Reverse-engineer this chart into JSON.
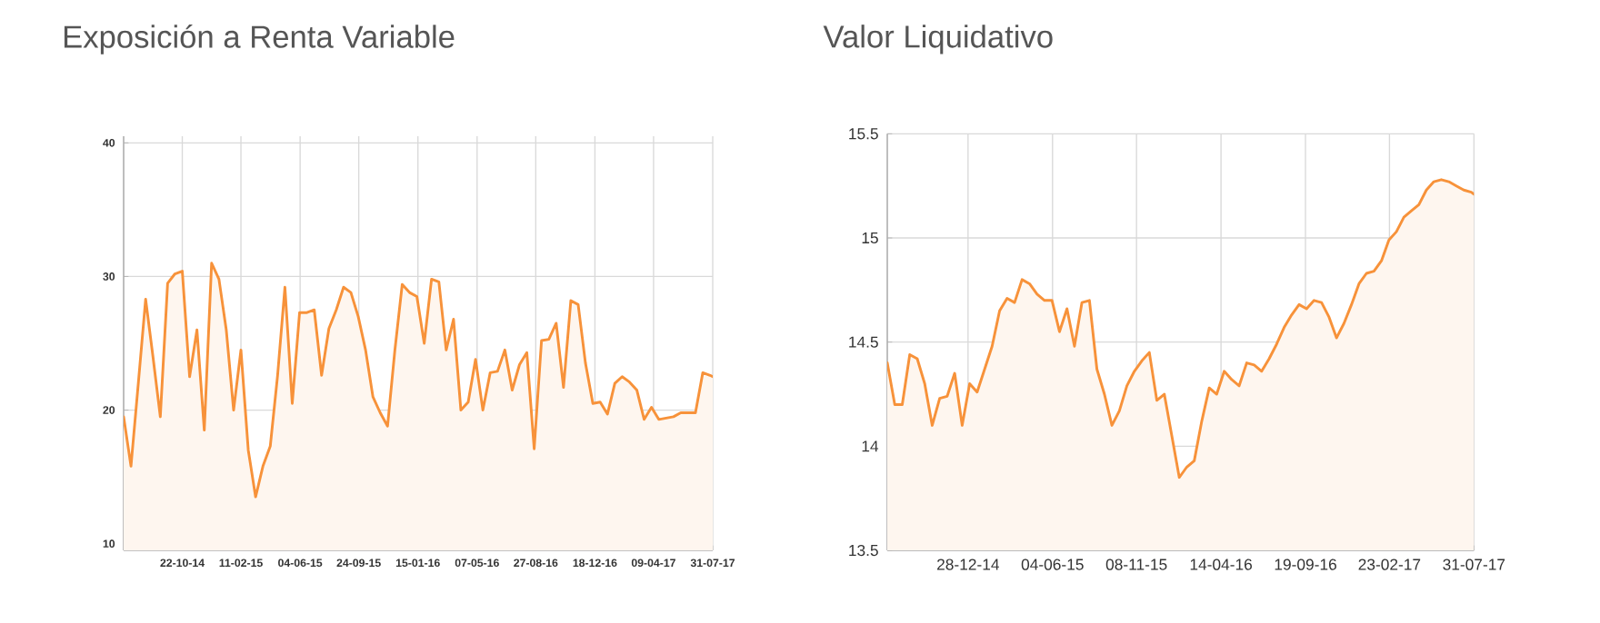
{
  "chart_data": [
    {
      "type": "area",
      "title": "Exposición a Renta Variable",
      "color": "#f7923a",
      "grid": true,
      "x": [
        "2014-07-02",
        "2014-07-16",
        "2014-07-30",
        "2014-08-13",
        "2014-08-27",
        "2014-09-10",
        "2014-09-24",
        "2014-10-08",
        "2014-10-22",
        "2014-11-05",
        "2014-11-19",
        "2014-12-03",
        "2014-12-17",
        "2014-12-31",
        "2015-01-14",
        "2015-01-28",
        "2015-02-11",
        "2015-02-25",
        "2015-03-11",
        "2015-03-25",
        "2015-04-08",
        "2015-04-22",
        "2015-05-06",
        "2015-05-20",
        "2015-06-03",
        "2015-06-17",
        "2015-07-01",
        "2015-07-15",
        "2015-07-29",
        "2015-08-12",
        "2015-08-26",
        "2015-09-09",
        "2015-09-23",
        "2015-10-07",
        "2015-10-21",
        "2015-11-04",
        "2015-11-18",
        "2015-12-02",
        "2015-12-16",
        "2015-12-30",
        "2016-01-13",
        "2016-01-27",
        "2016-02-10",
        "2016-02-24",
        "2016-03-09",
        "2016-03-23",
        "2016-04-06",
        "2016-04-20",
        "2016-05-04",
        "2016-05-18",
        "2016-06-01",
        "2016-06-15",
        "2016-06-29",
        "2016-07-13",
        "2016-07-27",
        "2016-08-10",
        "2016-08-24",
        "2016-09-07",
        "2016-09-21",
        "2016-10-05",
        "2016-10-19",
        "2016-11-02",
        "2016-11-16",
        "2016-11-30",
        "2016-12-14",
        "2016-12-28",
        "2017-01-11",
        "2017-01-25",
        "2017-02-08",
        "2017-02-22",
        "2017-03-08",
        "2017-03-22",
        "2017-04-05",
        "2017-04-19",
        "2017-05-03",
        "2017-05-17",
        "2017-05-31",
        "2017-06-14",
        "2017-06-28",
        "2017-07-12",
        "2017-07-26",
        "2017-07-31"
      ],
      "values": [
        19.5,
        15.8,
        22,
        28.3,
        24,
        19.5,
        29.5,
        30.2,
        30.4,
        22.5,
        26,
        18.5,
        31,
        29.8,
        26,
        20,
        24.5,
        17,
        13.5,
        15.8,
        17.3,
        22.6,
        29.2,
        20.5,
        27.3,
        27.3,
        27.5,
        22.6,
        26.1,
        27.5,
        29.2,
        28.8,
        27,
        24.5,
        21,
        19.8,
        18.8,
        24.5,
        29.4,
        28.8,
        28.5,
        25,
        29.8,
        29.6,
        24.5,
        26.8,
        20,
        20.6,
        23.8,
        20,
        22.8,
        22.9,
        24.5,
        21.5,
        23.4,
        24.3,
        17.1,
        25.2,
        25.3,
        26.5,
        21.7,
        28.2,
        27.9,
        23.5,
        20.5,
        20.6,
        19.7,
        22,
        22.5,
        22.1,
        21.5,
        19.3,
        20.2,
        19.3,
        19.4,
        19.5,
        19.8,
        19.8,
        19.8,
        22.8,
        22.6,
        22.5
      ],
      "xlim": [
        "2014-07-02",
        "2017-07-31"
      ],
      "ylim": [
        9.5,
        40.5
      ],
      "xticks": [
        {
          "value": "2014-10-22",
          "label": "22-10-14"
        },
        {
          "value": "2015-02-11",
          "label": "11-02-15"
        },
        {
          "value": "2015-06-04",
          "label": "04-06-15"
        },
        {
          "value": "2015-09-24",
          "label": "24-09-15"
        },
        {
          "value": "2016-01-15",
          "label": "15-01-16"
        },
        {
          "value": "2016-05-07",
          "label": "07-05-16"
        },
        {
          "value": "2016-08-27",
          "label": "27-08-16"
        },
        {
          "value": "2016-12-18",
          "label": "18-12-16"
        },
        {
          "value": "2017-04-09",
          "label": "09-04-17"
        },
        {
          "value": "2017-07-31",
          "label": "31-07-17"
        }
      ],
      "yticks": [
        10,
        20,
        30,
        40
      ]
    },
    {
      "type": "area",
      "title": "Valor Liquidativo",
      "color": "#f7923a",
      "grid": true,
      "x": [
        "2014-07-30",
        "2014-08-13",
        "2014-08-27",
        "2014-09-10",
        "2014-09-24",
        "2014-10-08",
        "2014-10-22",
        "2014-11-05",
        "2014-11-19",
        "2014-12-03",
        "2014-12-17",
        "2014-12-31",
        "2015-01-14",
        "2015-01-28",
        "2015-02-11",
        "2015-02-25",
        "2015-03-11",
        "2015-03-25",
        "2015-04-08",
        "2015-04-22",
        "2015-05-06",
        "2015-05-20",
        "2015-06-03",
        "2015-06-17",
        "2015-07-01",
        "2015-07-15",
        "2015-07-29",
        "2015-08-12",
        "2015-08-26",
        "2015-09-09",
        "2015-09-23",
        "2015-10-07",
        "2015-10-21",
        "2015-11-04",
        "2015-11-18",
        "2015-12-02",
        "2015-12-16",
        "2015-12-30",
        "2016-01-13",
        "2016-01-27",
        "2016-02-10",
        "2016-02-24",
        "2016-03-09",
        "2016-03-23",
        "2016-04-06",
        "2016-04-20",
        "2016-05-04",
        "2016-05-18",
        "2016-06-01",
        "2016-06-15",
        "2016-06-29",
        "2016-07-13",
        "2016-07-27",
        "2016-08-10",
        "2016-08-24",
        "2016-09-07",
        "2016-09-21",
        "2016-10-05",
        "2016-10-19",
        "2016-11-02",
        "2016-11-16",
        "2016-11-30",
        "2016-12-14",
        "2016-12-28",
        "2017-01-11",
        "2017-01-25",
        "2017-02-08",
        "2017-02-22",
        "2017-03-08",
        "2017-03-22",
        "2017-04-05",
        "2017-04-19",
        "2017-05-03",
        "2017-05-17",
        "2017-05-31",
        "2017-06-14",
        "2017-06-28",
        "2017-07-12",
        "2017-07-26",
        "2017-07-31"
      ],
      "values": [
        14.4,
        14.2,
        14.2,
        14.44,
        14.42,
        14.3,
        14.1,
        14.23,
        14.24,
        14.35,
        14.1,
        14.3,
        14.26,
        14.37,
        14.48,
        14.65,
        14.71,
        14.69,
        14.8,
        14.78,
        14.73,
        14.7,
        14.7,
        14.55,
        14.66,
        14.48,
        14.69,
        14.7,
        14.37,
        14.25,
        14.1,
        14.17,
        14.29,
        14.36,
        14.41,
        14.45,
        14.22,
        14.25,
        14.05,
        13.85,
        13.9,
        13.93,
        14.12,
        14.28,
        14.25,
        14.36,
        14.32,
        14.29,
        14.4,
        14.39,
        14.36,
        14.42,
        14.49,
        14.57,
        14.63,
        14.68,
        14.66,
        14.7,
        14.69,
        14.62,
        14.52,
        14.59,
        14.68,
        14.78,
        14.83,
        14.84,
        14.89,
        14.99,
        15.03,
        15.1,
        15.13,
        15.16,
        15.23,
        15.27,
        15.28,
        15.27,
        15.25,
        15.23,
        15.22,
        15.21
      ],
      "xlim": [
        "2014-07-30",
        "2017-07-31"
      ],
      "ylim": [
        13.5,
        15.5
      ],
      "xticks": [
        {
          "value": "2014-12-28",
          "label": "28-12-14"
        },
        {
          "value": "2015-06-04",
          "label": "04-06-15"
        },
        {
          "value": "2015-11-08",
          "label": "08-11-15"
        },
        {
          "value": "2016-04-14",
          "label": "14-04-16"
        },
        {
          "value": "2016-09-19",
          "label": "19-09-16"
        },
        {
          "value": "2017-02-23",
          "label": "23-02-17"
        },
        {
          "value": "2017-07-31",
          "label": "31-07-17"
        }
      ],
      "yticks": [
        13.5,
        14,
        14.5,
        15,
        15.5
      ]
    }
  ]
}
